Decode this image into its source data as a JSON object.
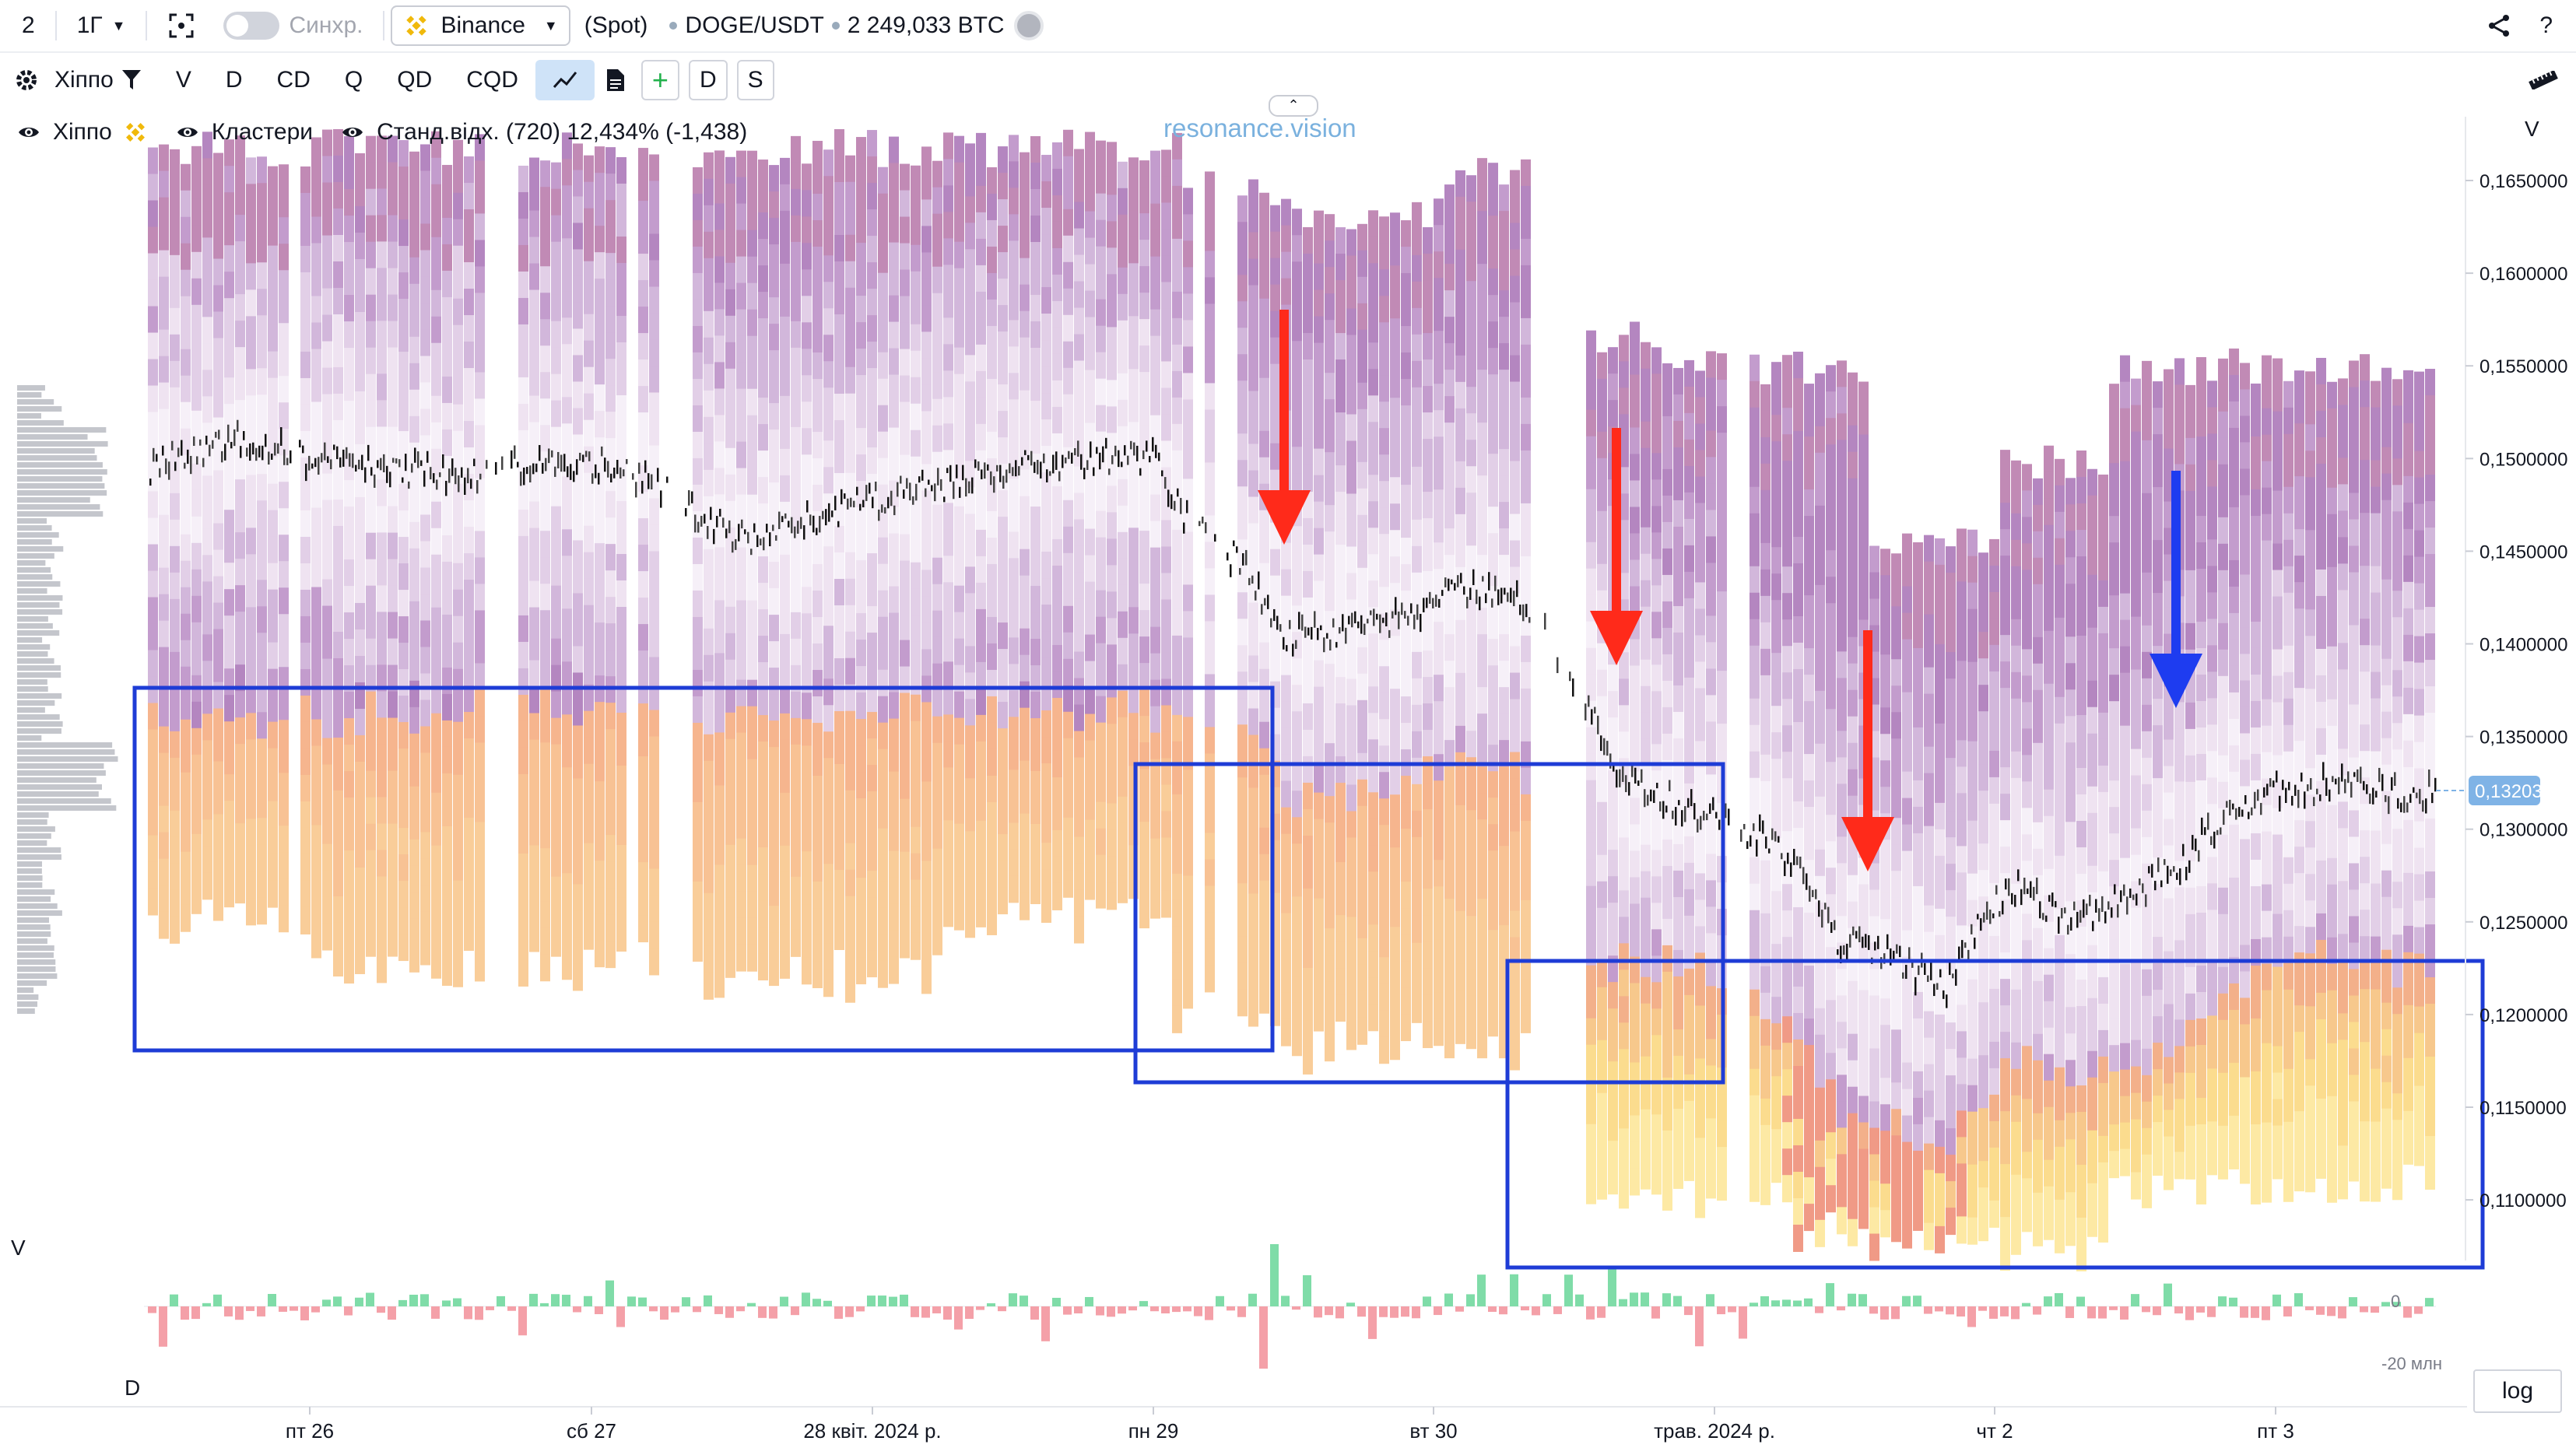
{
  "topbar": {
    "layout_number": "2",
    "interval": "1Г",
    "sync_label": "Синхр.",
    "exchange": "Binance",
    "market_type": "(Spot)",
    "symbol": "DOGE/USDT",
    "volume": "2 249,033 BTC",
    "share_icon": "share-icon",
    "help_label": "?"
  },
  "toolbar": {
    "settings_icon": "gear-icon",
    "indicator_name": "Хіппо",
    "filter_icon": "filter-icon",
    "buttons": [
      "V",
      "D",
      "CD",
      "Q",
      "QD",
      "CQD"
    ],
    "line_icon": "line-chart-icon",
    "doc_icon": "document-icon",
    "plus_label": "+",
    "d_label": "D",
    "s_label": "S",
    "ruler_icon": "ruler-icon"
  },
  "legend": {
    "hippo_label": "Хіппо",
    "clusters_label": "Кластери",
    "std_label": "Станд.відх. (720) 12,434% (-1,438)"
  },
  "watermark": "resonance.vision",
  "price_axis": {
    "header": "V",
    "ticks": [
      "0,1650000",
      "0,1600000",
      "0,1550000",
      "0,1500000",
      "0,1450000",
      "0,1400000",
      "0,1350000",
      "0,1300000",
      "0,1250000",
      "0,1200000",
      "0,1150000",
      "0,1100000"
    ],
    "current_price": "0,13203",
    "current_color": "#7fb3e6"
  },
  "lower_pane": {
    "v_label": "V",
    "d_label": "D",
    "zero_label": "0",
    "min_label": "-20 млн"
  },
  "time_axis": {
    "labels": [
      "пт 26",
      "сб 27",
      "28 квіт. 2024 р.",
      "пн 29",
      "вт 30",
      "трав. 2024 р.",
      "чт 2",
      "пт 3"
    ]
  },
  "log_button": "log",
  "colors": {
    "accent": "#2962ff",
    "highlight_box": "#1e3cd6",
    "arrow_red": "#ff2a1a",
    "arrow_blue": "#1e3cf0",
    "delta_pos": "#7fdca8",
    "delta_neg": "#f4a0a8"
  }
}
